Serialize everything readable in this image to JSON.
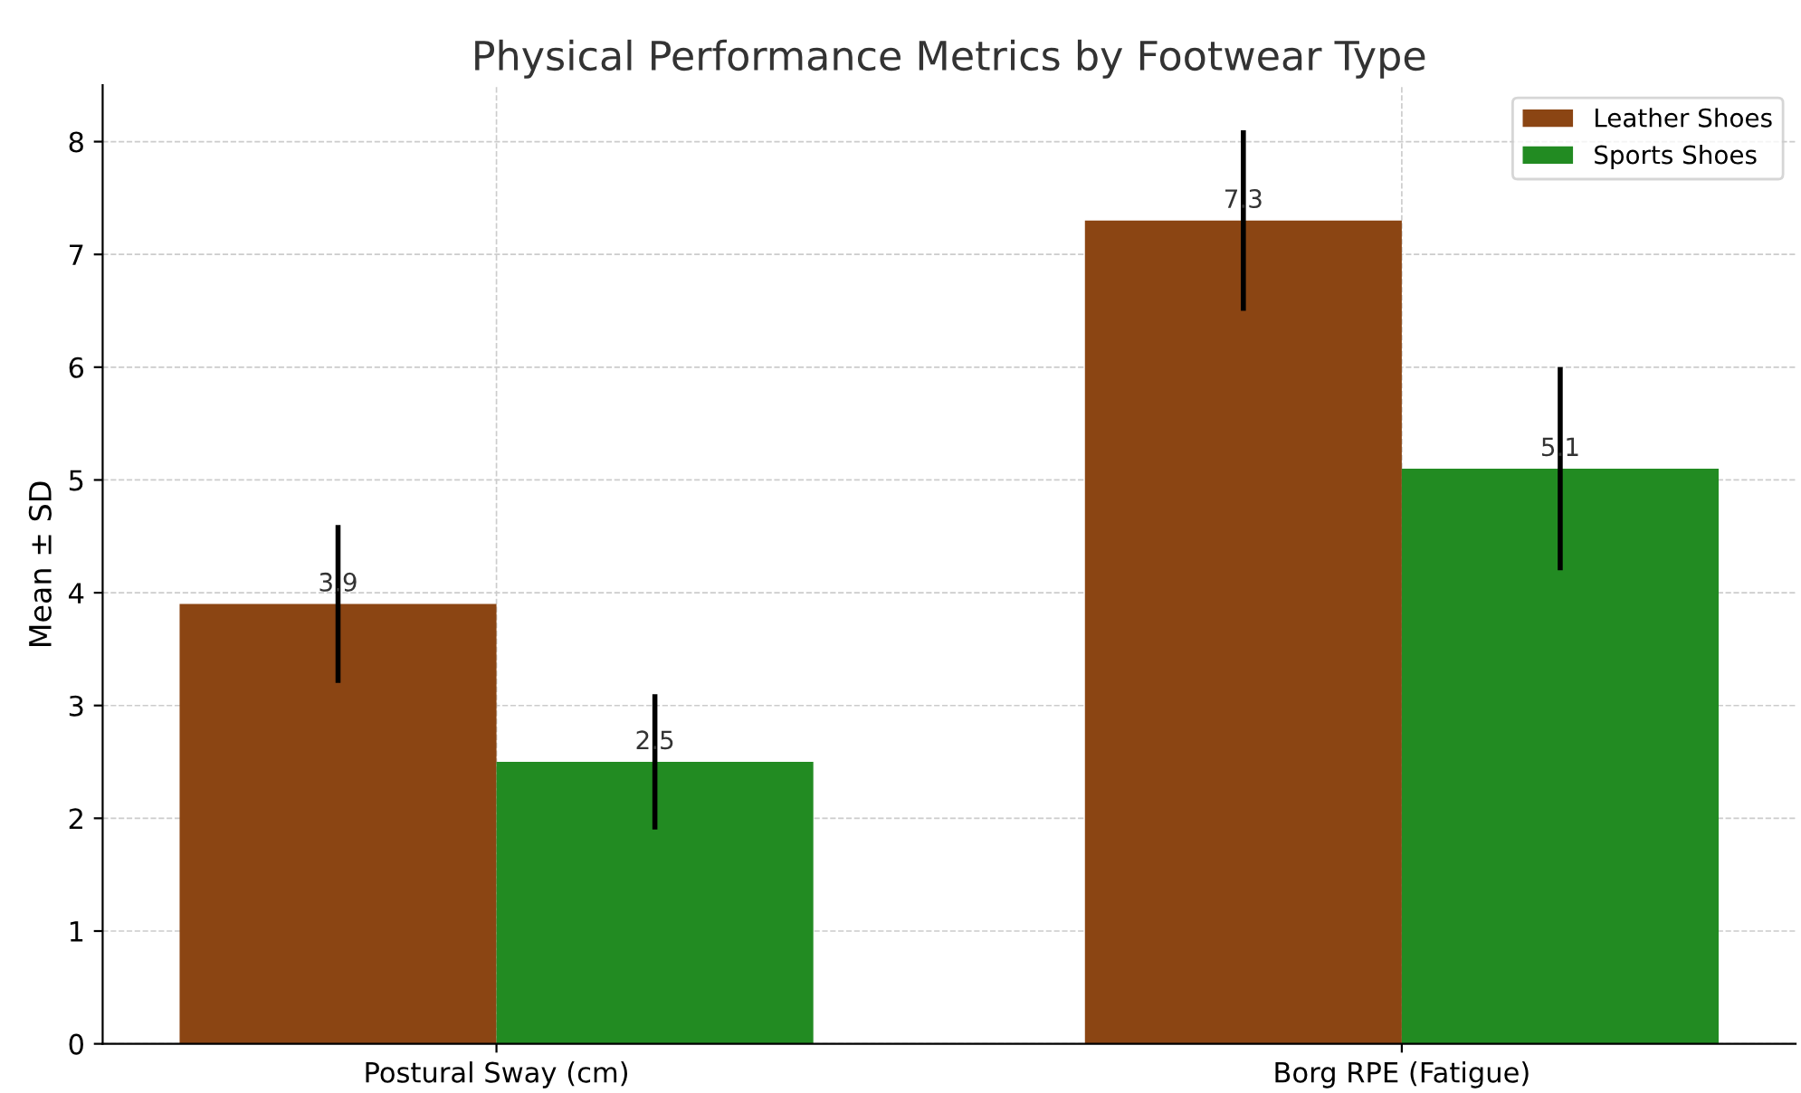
{
  "chart_data": {
    "type": "bar",
    "title": "Physical Performance Metrics by Footwear Type",
    "ylabel": "Mean ± SD",
    "categories": [
      "Postural Sway (cm)",
      "Borg RPE (Fatigue)"
    ],
    "series": [
      {
        "name": "Leather Shoes",
        "color": "#8b4513",
        "values": [
          3.9,
          7.3
        ],
        "errors": [
          0.7,
          0.8
        ]
      },
      {
        "name": "Sports Shoes",
        "color": "#228b22",
        "values": [
          2.5,
          5.1
        ],
        "errors": [
          0.6,
          0.9
        ]
      }
    ],
    "ylim": [
      0,
      8.5
    ],
    "yticks": [
      0,
      1,
      2,
      3,
      4,
      5,
      6,
      7,
      8
    ],
    "grid": true,
    "legend": "top right",
    "data_labels": true
  }
}
